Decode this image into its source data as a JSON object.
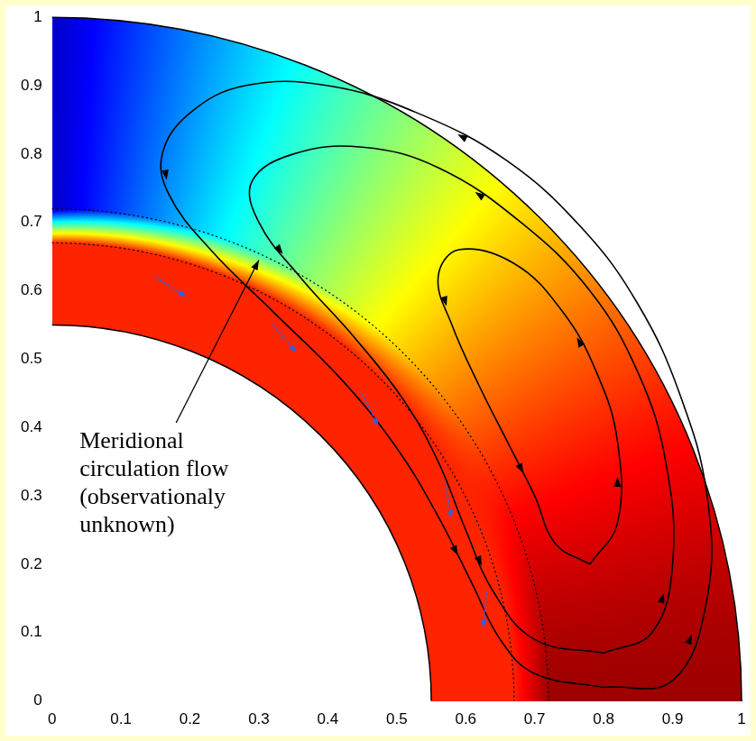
{
  "chart_data": {
    "type": "scatter",
    "xlim": [
      0,
      1
    ],
    "ylim": [
      0,
      1
    ],
    "xticks": [
      0,
      0.1,
      0.2,
      0.3,
      0.4,
      0.5,
      0.6,
      0.7,
      0.8,
      0.9,
      1
    ],
    "yticks": [
      0,
      0.1,
      0.2,
      0.3,
      0.4,
      0.5,
      0.6,
      0.7,
      0.8,
      0.9,
      1
    ],
    "grid": false,
    "annotation": "Meridional circulation flow (observationaly unknown)",
    "series": [
      {
        "color": "#000000",
        "line_style": "solid",
        "marker": "arrow",
        "values": [
          [
            0.8,
            0.02
          ],
          [
            0.9,
            0.03
          ],
          [
            0.95,
            0.15
          ],
          [
            0.95,
            0.3
          ],
          [
            0.91,
            0.45
          ],
          [
            0.85,
            0.58
          ],
          [
            0.77,
            0.69
          ],
          [
            0.66,
            0.79
          ],
          [
            0.53,
            0.86
          ],
          [
            0.4,
            0.9
          ],
          [
            0.28,
            0.9
          ],
          [
            0.2,
            0.86
          ],
          [
            0.16,
            0.8
          ],
          [
            0.17,
            0.74
          ],
          [
            0.23,
            0.66
          ],
          [
            0.32,
            0.57
          ],
          [
            0.42,
            0.47
          ],
          [
            0.5,
            0.37
          ],
          [
            0.56,
            0.27
          ],
          [
            0.61,
            0.17
          ],
          [
            0.65,
            0.09
          ],
          [
            0.7,
            0.04
          ],
          [
            0.8,
            0.02
          ]
        ]
      },
      {
        "color": "#000000",
        "line_style": "solid",
        "marker": "arrow",
        "values": [
          [
            0.8,
            0.07
          ],
          [
            0.87,
            0.1
          ],
          [
            0.9,
            0.2
          ],
          [
            0.89,
            0.35
          ],
          [
            0.85,
            0.48
          ],
          [
            0.78,
            0.6
          ],
          [
            0.68,
            0.7
          ],
          [
            0.56,
            0.78
          ],
          [
            0.45,
            0.81
          ],
          [
            0.35,
            0.8
          ],
          [
            0.29,
            0.76
          ],
          [
            0.3,
            0.7
          ],
          [
            0.36,
            0.62
          ],
          [
            0.44,
            0.53
          ],
          [
            0.51,
            0.44
          ],
          [
            0.56,
            0.35
          ],
          [
            0.6,
            0.25
          ],
          [
            0.64,
            0.16
          ],
          [
            0.7,
            0.09
          ],
          [
            0.8,
            0.07
          ]
        ]
      },
      {
        "color": "#000000",
        "line_style": "solid",
        "marker": "arrow",
        "values": [
          [
            0.78,
            0.2
          ],
          [
            0.82,
            0.26
          ],
          [
            0.82,
            0.38
          ],
          [
            0.79,
            0.48
          ],
          [
            0.74,
            0.57
          ],
          [
            0.67,
            0.64
          ],
          [
            0.59,
            0.66
          ],
          [
            0.56,
            0.62
          ],
          [
            0.58,
            0.55
          ],
          [
            0.62,
            0.46
          ],
          [
            0.66,
            0.38
          ],
          [
            0.7,
            0.3
          ],
          [
            0.73,
            0.23
          ],
          [
            0.78,
            0.2
          ]
        ]
      }
    ],
    "boundaries": [
      {
        "r": 0.55,
        "line_style": "solid",
        "color": "#000000"
      },
      {
        "r": 0.67,
        "line_style": "dotted",
        "color": "#000000"
      },
      {
        "r": 0.72,
        "line_style": "dotted",
        "color": "#000000"
      },
      {
        "r": 1,
        "line_style": "solid",
        "color": "#000000"
      }
    ],
    "vectors": {
      "color": "#2f5fe8",
      "points": [
        [
          0.15,
          0.62
        ],
        [
          0.32,
          0.55
        ],
        [
          0.45,
          0.45
        ],
        [
          0.57,
          0.32
        ],
        [
          0.63,
          0.16
        ]
      ]
    }
  }
}
